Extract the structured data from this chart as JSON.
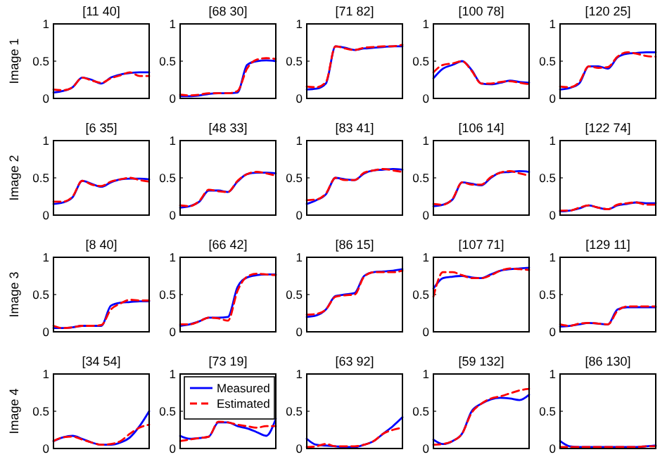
{
  "chart_data": [
    {
      "type": "line",
      "title": "[11 40]",
      "ylabel": "Image 1",
      "categories": [
        null,
        null,
        null,
        null,
        null,
        null,
        null,
        null,
        null,
        null,
        null
      ],
      "ylim": [
        0,
        1
      ],
      "yticks": [
        0,
        0.5,
        1
      ],
      "tick_labels": "y",
      "series": [
        {
          "color": "#0000ff",
          "line_style": "solid",
          "values": [
            0.08,
            0.1,
            0.15,
            0.28,
            0.25,
            0.2,
            0.28,
            0.32,
            0.34,
            0.35,
            0.35
          ]
        },
        {
          "color": "#ff0000",
          "line_style": "dashed",
          "values": [
            0.12,
            0.11,
            0.15,
            0.28,
            0.24,
            0.21,
            0.27,
            0.31,
            0.35,
            0.3,
            0.3
          ]
        }
      ]
    },
    {
      "type": "line",
      "title": "[68 30]",
      "categories": [
        null,
        null,
        null,
        null,
        null,
        null,
        null,
        null,
        null,
        null,
        null
      ],
      "ylim": [
        0,
        1
      ],
      "yticks": [
        0,
        0.5,
        1
      ],
      "tick_labels": "y",
      "series": [
        {
          "color": "#0000ff",
          "line_style": "solid",
          "values": [
            0.03,
            0.03,
            0.04,
            0.06,
            0.07,
            0.07,
            0.08,
            0.45,
            0.5,
            0.51,
            0.5
          ]
        },
        {
          "color": "#ff0000",
          "line_style": "dashed",
          "values": [
            0.05,
            0.04,
            0.05,
            0.07,
            0.07,
            0.07,
            0.1,
            0.4,
            0.52,
            0.54,
            0.53
          ]
        }
      ]
    },
    {
      "type": "line",
      "title": "[71 82]",
      "categories": [
        null,
        null,
        null,
        null,
        null,
        null,
        null,
        null,
        null,
        null,
        null
      ],
      "ylim": [
        0,
        1
      ],
      "yticks": [
        0,
        0.5,
        1
      ],
      "tick_labels": "y",
      "series": [
        {
          "color": "#0000ff",
          "line_style": "solid",
          "values": [
            0.12,
            0.13,
            0.2,
            0.7,
            0.68,
            0.65,
            0.67,
            0.68,
            0.69,
            0.7,
            0.7
          ]
        },
        {
          "color": "#ff0000",
          "line_style": "dashed",
          "values": [
            0.16,
            0.15,
            0.22,
            0.7,
            0.67,
            0.65,
            0.68,
            0.69,
            0.7,
            0.7,
            0.72
          ]
        }
      ]
    },
    {
      "type": "line",
      "title": "[100 78]",
      "categories": [
        null,
        null,
        null,
        null,
        null,
        null,
        null,
        null,
        null,
        null,
        null
      ],
      "ylim": [
        0,
        1
      ],
      "yticks": [
        0,
        0.5,
        1
      ],
      "tick_labels": "y",
      "series": [
        {
          "color": "#0000ff",
          "line_style": "solid",
          "values": [
            0.27,
            0.4,
            0.45,
            0.5,
            0.38,
            0.2,
            0.19,
            0.21,
            0.24,
            0.22,
            0.21
          ]
        },
        {
          "color": "#ff0000",
          "line_style": "dashed",
          "values": [
            0.35,
            0.45,
            0.47,
            0.5,
            0.37,
            0.2,
            0.2,
            0.22,
            0.23,
            0.21,
            0.19
          ]
        }
      ]
    },
    {
      "type": "line",
      "title": "[120 25]",
      "categories": [
        null,
        null,
        null,
        null,
        null,
        null,
        null,
        null,
        null,
        null,
        null
      ],
      "ylim": [
        0,
        1
      ],
      "yticks": [
        0,
        0.5,
        1
      ],
      "tick_labels": "y",
      "series": [
        {
          "color": "#0000ff",
          "line_style": "solid",
          "values": [
            0.12,
            0.14,
            0.2,
            0.43,
            0.43,
            0.4,
            0.55,
            0.6,
            0.61,
            0.62,
            0.62
          ]
        },
        {
          "color": "#ff0000",
          "line_style": "dashed",
          "values": [
            0.16,
            0.15,
            0.22,
            0.43,
            0.41,
            0.42,
            0.56,
            0.62,
            0.6,
            0.57,
            0.56
          ]
        }
      ]
    },
    {
      "type": "line",
      "title": "[6 35]",
      "ylabel": "Image 2",
      "categories": [
        null,
        null,
        null,
        null,
        null,
        null,
        null,
        null,
        null,
        null,
        null
      ],
      "ylim": [
        0,
        1
      ],
      "yticks": [
        0,
        0.5,
        1
      ],
      "tick_labels": "y",
      "series": [
        {
          "color": "#0000ff",
          "line_style": "solid",
          "values": [
            0.15,
            0.17,
            0.24,
            0.46,
            0.42,
            0.38,
            0.44,
            0.48,
            0.49,
            0.49,
            0.48
          ]
        },
        {
          "color": "#ff0000",
          "line_style": "dashed",
          "values": [
            0.18,
            0.18,
            0.25,
            0.46,
            0.41,
            0.39,
            0.45,
            0.48,
            0.5,
            0.47,
            0.45
          ]
        }
      ]
    },
    {
      "type": "line",
      "title": "[48 33]",
      "categories": [
        null,
        null,
        null,
        null,
        null,
        null,
        null,
        null,
        null,
        null,
        null
      ],
      "ylim": [
        0,
        1
      ],
      "yticks": [
        0,
        0.5,
        1
      ],
      "tick_labels": "y",
      "series": [
        {
          "color": "#0000ff",
          "line_style": "solid",
          "values": [
            0.1,
            0.12,
            0.18,
            0.33,
            0.33,
            0.31,
            0.45,
            0.55,
            0.57,
            0.57,
            0.56
          ]
        },
        {
          "color": "#ff0000",
          "line_style": "dashed",
          "values": [
            0.13,
            0.12,
            0.19,
            0.34,
            0.32,
            0.31,
            0.46,
            0.55,
            0.58,
            0.56,
            0.53
          ]
        }
      ]
    },
    {
      "type": "line",
      "title": "[83 41]",
      "categories": [
        null,
        null,
        null,
        null,
        null,
        null,
        null,
        null,
        null,
        null,
        null
      ],
      "ylim": [
        0,
        1
      ],
      "yticks": [
        0,
        0.5,
        1
      ],
      "tick_labels": "y",
      "series": [
        {
          "color": "#0000ff",
          "line_style": "solid",
          "values": [
            0.15,
            0.2,
            0.28,
            0.5,
            0.48,
            0.47,
            0.56,
            0.6,
            0.61,
            0.62,
            0.61
          ]
        },
        {
          "color": "#ff0000",
          "line_style": "dashed",
          "values": [
            0.2,
            0.21,
            0.29,
            0.5,
            0.47,
            0.47,
            0.57,
            0.6,
            0.62,
            0.6,
            0.58
          ]
        }
      ]
    },
    {
      "type": "line",
      "title": "[106 14]",
      "categories": [
        null,
        null,
        null,
        null,
        null,
        null,
        null,
        null,
        null,
        null,
        null
      ],
      "ylim": [
        0,
        1
      ],
      "yticks": [
        0,
        0.5,
        1
      ],
      "tick_labels": "y",
      "series": [
        {
          "color": "#0000ff",
          "line_style": "solid",
          "values": [
            0.12,
            0.14,
            0.21,
            0.44,
            0.42,
            0.4,
            0.5,
            0.57,
            0.58,
            0.59,
            0.58
          ]
        },
        {
          "color": "#ff0000",
          "line_style": "dashed",
          "values": [
            0.15,
            0.14,
            0.22,
            0.44,
            0.41,
            0.41,
            0.51,
            0.57,
            0.59,
            0.56,
            0.53
          ]
        }
      ]
    },
    {
      "type": "line",
      "title": "[122 74]",
      "categories": [
        null,
        null,
        null,
        null,
        null,
        null,
        null,
        null,
        null,
        null,
        null
      ],
      "ylim": [
        0,
        1
      ],
      "yticks": [
        0,
        0.5,
        1
      ],
      "tick_labels": "y",
      "series": [
        {
          "color": "#0000ff",
          "line_style": "solid",
          "values": [
            0.05,
            0.06,
            0.09,
            0.13,
            0.1,
            0.08,
            0.13,
            0.15,
            0.17,
            0.16,
            0.16
          ]
        },
        {
          "color": "#ff0000",
          "line_style": "dashed",
          "values": [
            0.06,
            0.06,
            0.1,
            0.13,
            0.1,
            0.08,
            0.14,
            0.16,
            0.17,
            0.14,
            0.14
          ]
        }
      ]
    },
    {
      "type": "line",
      "title": "[8 40]",
      "ylabel": "Image 3",
      "categories": [
        null,
        null,
        null,
        null,
        null,
        null,
        null,
        null,
        null,
        null,
        null
      ],
      "ylim": [
        0,
        1
      ],
      "yticks": [
        0,
        0.5,
        1
      ],
      "tick_labels": "y",
      "series": [
        {
          "color": "#0000ff",
          "line_style": "solid",
          "values": [
            0.05,
            0.05,
            0.06,
            0.08,
            0.08,
            0.08,
            0.35,
            0.39,
            0.4,
            0.41,
            0.41
          ]
        },
        {
          "color": "#ff0000",
          "line_style": "dashed",
          "values": [
            0.08,
            0.05,
            0.06,
            0.08,
            0.08,
            0.09,
            0.3,
            0.38,
            0.43,
            0.42,
            0.42
          ]
        }
      ]
    },
    {
      "type": "line",
      "title": "[66 42]",
      "categories": [
        null,
        null,
        null,
        null,
        null,
        null,
        null,
        null,
        null,
        null,
        null
      ],
      "ylim": [
        0,
        1
      ],
      "yticks": [
        0,
        0.5,
        1
      ],
      "tick_labels": "y",
      "series": [
        {
          "color": "#0000ff",
          "line_style": "solid",
          "values": [
            0.08,
            0.1,
            0.14,
            0.19,
            0.19,
            0.2,
            0.6,
            0.73,
            0.76,
            0.77,
            0.77
          ]
        },
        {
          "color": "#ff0000",
          "line_style": "dashed",
          "values": [
            0.1,
            0.1,
            0.14,
            0.19,
            0.18,
            0.15,
            0.55,
            0.74,
            0.78,
            0.77,
            0.76
          ]
        }
      ]
    },
    {
      "type": "line",
      "title": "[86 15]",
      "categories": [
        null,
        null,
        null,
        null,
        null,
        null,
        null,
        null,
        null,
        null,
        null
      ],
      "ylim": [
        0,
        1
      ],
      "yticks": [
        0,
        0.5,
        1
      ],
      "tick_labels": "y",
      "series": [
        {
          "color": "#0000ff",
          "line_style": "solid",
          "values": [
            0.2,
            0.22,
            0.3,
            0.48,
            0.5,
            0.52,
            0.75,
            0.8,
            0.81,
            0.82,
            0.84
          ]
        },
        {
          "color": "#ff0000",
          "line_style": "dashed",
          "values": [
            0.23,
            0.24,
            0.3,
            0.47,
            0.49,
            0.5,
            0.74,
            0.8,
            0.8,
            0.8,
            0.82
          ]
        }
      ]
    },
    {
      "type": "line",
      "title": "[107 71]",
      "categories": [
        null,
        null,
        null,
        null,
        null,
        null,
        null,
        null,
        null,
        null,
        null
      ],
      "ylim": [
        0,
        1
      ],
      "yticks": [
        0,
        0.5,
        1
      ],
      "tick_labels": "y",
      "series": [
        {
          "color": "#0000ff",
          "line_style": "solid",
          "values": [
            0.58,
            0.72,
            0.74,
            0.75,
            0.73,
            0.72,
            0.77,
            0.82,
            0.84,
            0.85,
            0.86
          ]
        },
        {
          "color": "#ff0000",
          "line_style": "dashed",
          "values": [
            0.47,
            0.8,
            0.8,
            0.76,
            0.72,
            0.72,
            0.76,
            0.82,
            0.85,
            0.84,
            0.83
          ]
        }
      ]
    },
    {
      "type": "line",
      "title": "[129 11]",
      "categories": [
        null,
        null,
        null,
        null,
        null,
        null,
        null,
        null,
        null,
        null,
        null
      ],
      "ylim": [
        0,
        1
      ],
      "yticks": [
        0,
        0.5,
        1
      ],
      "tick_labels": "y",
      "series": [
        {
          "color": "#0000ff",
          "line_style": "solid",
          "values": [
            0.07,
            0.08,
            0.1,
            0.12,
            0.11,
            0.1,
            0.3,
            0.33,
            0.33,
            0.33,
            0.33
          ]
        },
        {
          "color": "#ff0000",
          "line_style": "dashed",
          "values": [
            0.1,
            0.08,
            0.11,
            0.12,
            0.11,
            0.1,
            0.28,
            0.34,
            0.34,
            0.34,
            0.34
          ]
        }
      ]
    },
    {
      "type": "line",
      "title": "[34 54]",
      "ylabel": "Image 4",
      "categories": [
        null,
        null,
        null,
        null,
        null,
        null,
        null,
        null,
        null,
        null,
        null
      ],
      "ylim": [
        0,
        1
      ],
      "yticks": [
        0,
        0.5,
        1
      ],
      "tick_labels": "y",
      "series": [
        {
          "color": "#0000ff",
          "line_style": "solid",
          "values": [
            0.1,
            0.15,
            0.17,
            0.13,
            0.08,
            0.05,
            0.05,
            0.08,
            0.15,
            0.3,
            0.5
          ]
        },
        {
          "color": "#ff0000",
          "line_style": "dashed",
          "values": [
            0.1,
            0.15,
            0.16,
            0.12,
            0.08,
            0.05,
            0.06,
            0.1,
            0.2,
            0.28,
            0.32
          ]
        }
      ]
    },
    {
      "type": "line",
      "title": "[73 19]",
      "legend": "top right",
      "categories": [
        null,
        null,
        null,
        null,
        null,
        null,
        null,
        null,
        null,
        null,
        null
      ],
      "ylim": [
        0,
        1
      ],
      "yticks": [
        0,
        0.5,
        1
      ],
      "tick_labels": "y",
      "series": [
        {
          "name": "Measured",
          "color": "#0000ff",
          "line_style": "solid",
          "values": [
            0.17,
            0.13,
            0.14,
            0.16,
            0.35,
            0.35,
            0.3,
            0.27,
            0.22,
            0.17,
            0.4
          ]
        },
        {
          "name": "Estimated",
          "color": "#ff0000",
          "line_style": "dashed",
          "values": [
            0.1,
            0.12,
            0.14,
            0.16,
            0.36,
            0.35,
            0.32,
            0.3,
            0.28,
            0.3,
            0.3
          ]
        }
      ]
    },
    {
      "type": "line",
      "title": "[63 92]",
      "categories": [
        null,
        null,
        null,
        null,
        null,
        null,
        null,
        null,
        null,
        null,
        null
      ],
      "ylim": [
        0,
        1
      ],
      "yticks": [
        0,
        0.5,
        1
      ],
      "tick_labels": "y",
      "series": [
        {
          "color": "#0000ff",
          "line_style": "solid",
          "values": [
            0.13,
            0.05,
            0.04,
            0.03,
            0.02,
            0.02,
            0.05,
            0.1,
            0.2,
            0.3,
            0.42
          ]
        },
        {
          "color": "#ff0000",
          "line_style": "dashed",
          "values": [
            0.02,
            0.03,
            0.06,
            0.03,
            0.03,
            0.03,
            0.05,
            0.1,
            0.2,
            0.25,
            0.28
          ]
        }
      ]
    },
    {
      "type": "line",
      "title": "[59 132]",
      "categories": [
        null,
        null,
        null,
        null,
        null,
        null,
        null,
        null,
        null,
        null,
        null
      ],
      "ylim": [
        0,
        1
      ],
      "yticks": [
        0,
        0.5,
        1
      ],
      "tick_labels": "y",
      "series": [
        {
          "color": "#0000ff",
          "line_style": "solid",
          "values": [
            0.12,
            0.06,
            0.1,
            0.2,
            0.5,
            0.6,
            0.66,
            0.68,
            0.67,
            0.65,
            0.72
          ]
        },
        {
          "color": "#ff0000",
          "line_style": "dashed",
          "values": [
            0.05,
            0.06,
            0.1,
            0.2,
            0.48,
            0.6,
            0.67,
            0.7,
            0.74,
            0.78,
            0.8
          ]
        }
      ]
    },
    {
      "type": "line",
      "title": "[86 130]",
      "categories": [
        null,
        null,
        null,
        null,
        null,
        null,
        null,
        null,
        null,
        null,
        null
      ],
      "ylim": [
        0,
        1
      ],
      "yticks": [
        0,
        0.5,
        1
      ],
      "tick_labels": "y",
      "series": [
        {
          "color": "#0000ff",
          "line_style": "solid",
          "values": [
            0.1,
            0.03,
            0.02,
            0.02,
            0.02,
            0.02,
            0.02,
            0.02,
            0.02,
            0.03,
            0.04
          ]
        },
        {
          "color": "#ff0000",
          "line_style": "dashed",
          "values": [
            0.02,
            0.02,
            0.02,
            0.02,
            0.02,
            0.02,
            0.02,
            0.02,
            0.02,
            0.03,
            0.03
          ]
        }
      ]
    }
  ]
}
